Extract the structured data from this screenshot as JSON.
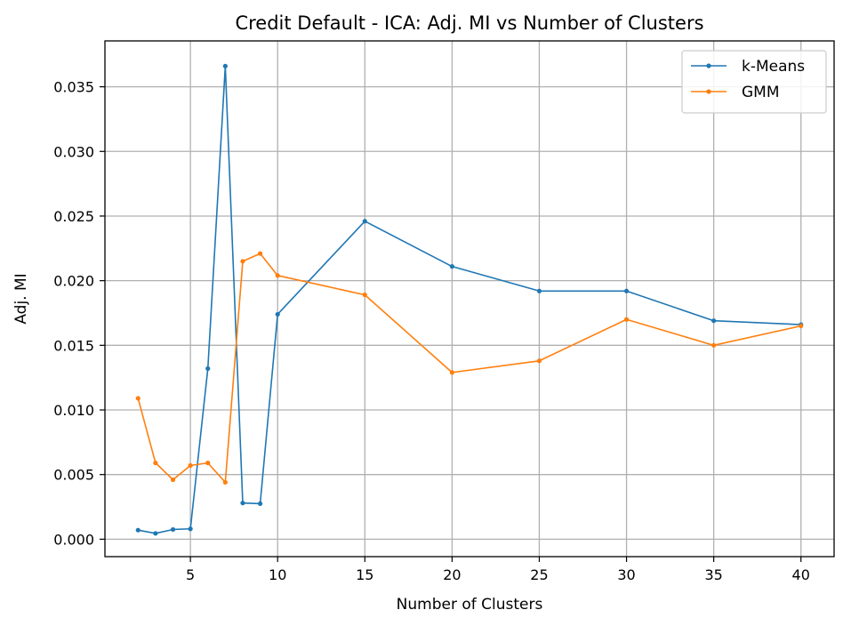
{
  "chart_data": {
    "type": "line",
    "title": "Credit Default - ICA: Adj. MI vs Number of Clusters",
    "xlabel": "Number of Clusters",
    "ylabel": "Adj. MI",
    "xlim": [
      0.1,
      41.9
    ],
    "ylim": [
      -0.00135,
      0.03855
    ],
    "xticks": [
      5,
      10,
      15,
      20,
      25,
      30,
      35,
      40
    ],
    "xtick_labels": [
      "5",
      "10",
      "15",
      "20",
      "25",
      "30",
      "35",
      "40"
    ],
    "yticks": [
      0.0,
      0.005,
      0.01,
      0.015,
      0.02,
      0.025,
      0.03,
      0.035
    ],
    "ytick_labels": [
      "0.000",
      "0.005",
      "0.010",
      "0.015",
      "0.020",
      "0.025",
      "0.030",
      "0.035"
    ],
    "grid": true,
    "legend_position": "top-right",
    "x": [
      2,
      3,
      4,
      5,
      6,
      7,
      8,
      9,
      10,
      15,
      20,
      25,
      30,
      35,
      40
    ],
    "series": [
      {
        "name": "k-Means",
        "color": "#1f77b4",
        "marker": "circle",
        "values": [
          0.0007,
          0.00045,
          0.00075,
          0.0008,
          0.0132,
          0.0366,
          0.0028,
          0.00275,
          0.0174,
          0.0246,
          0.0211,
          0.0192,
          0.0192,
          0.0169,
          0.0166
        ]
      },
      {
        "name": "GMM",
        "color": "#ff7f0e",
        "marker": "circle",
        "values": [
          0.0109,
          0.0059,
          0.0046,
          0.0057,
          0.0059,
          0.0044,
          0.0215,
          0.0221,
          0.0204,
          0.0189,
          0.0129,
          0.0138,
          0.017,
          0.015,
          0.0165
        ]
      }
    ]
  }
}
